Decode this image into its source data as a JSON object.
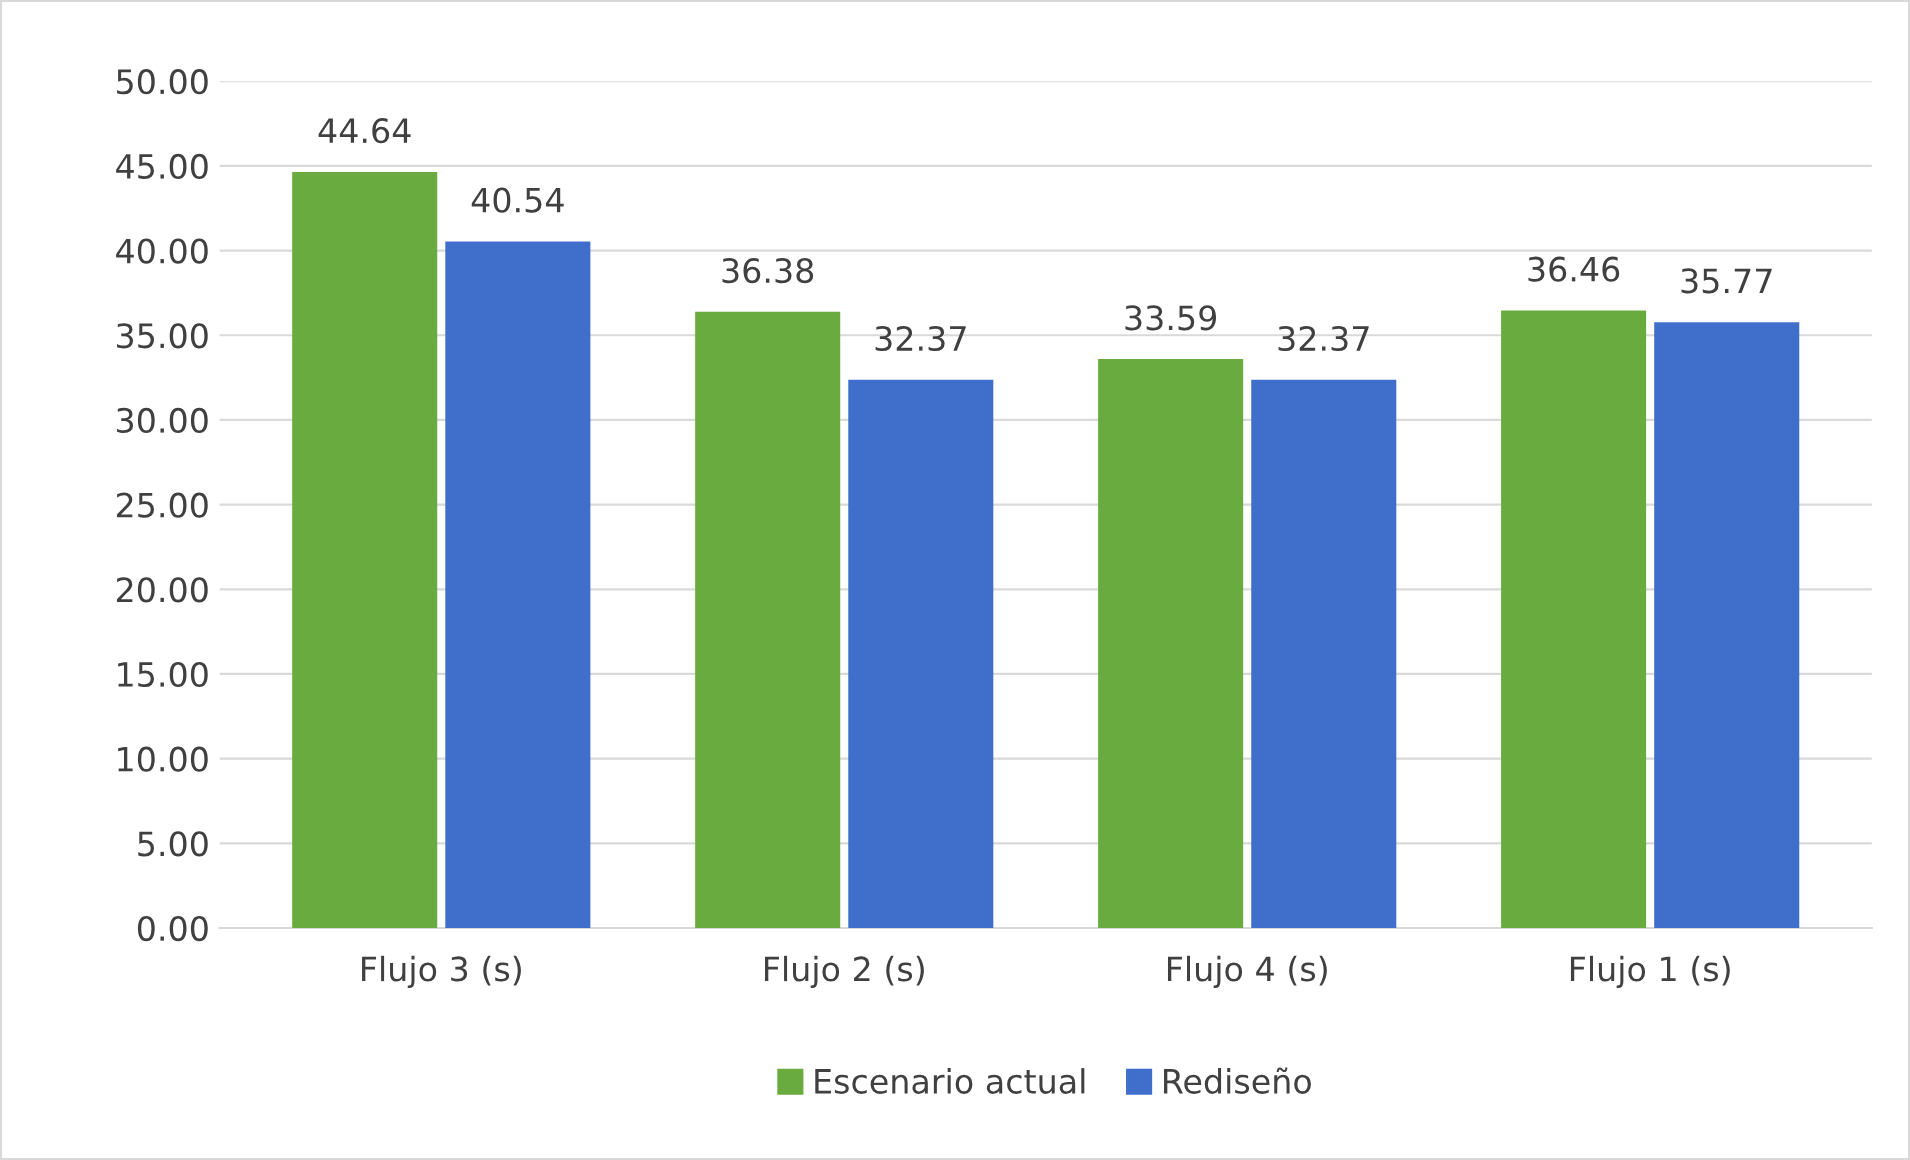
{
  "chart_data": {
    "type": "bar",
    "categories": [
      "Flujo 3 (s)",
      "Flujo 2 (s)",
      "Flujo 4 (s)",
      "Flujo 1 (s)"
    ],
    "series": [
      {
        "name": "Escenario actual",
        "color": "#6aab3f",
        "values": [
          44.64,
          36.38,
          33.59,
          36.46
        ]
      },
      {
        "name": "Rediseño",
        "color": "#3f6fcb",
        "values": [
          40.54,
          32.37,
          32.37,
          35.77
        ]
      }
    ],
    "ylim": [
      0,
      50
    ],
    "yticks": [
      {
        "value": 0,
        "label": "0.00"
      },
      {
        "value": 5,
        "label": "5.00"
      },
      {
        "value": 10,
        "label": "10.00"
      },
      {
        "value": 15,
        "label": "15.00"
      },
      {
        "value": 20,
        "label": "20.00"
      },
      {
        "value": 25,
        "label": "25.00"
      },
      {
        "value": 30,
        "label": "30.00"
      },
      {
        "value": 35,
        "label": "35.00"
      },
      {
        "value": 40,
        "label": "40.00"
      },
      {
        "value": 45,
        "label": "45.00"
      },
      {
        "value": 50,
        "label": "50.00"
      }
    ],
    "grid": "y",
    "legend": "bottom",
    "data_labels": true
  }
}
